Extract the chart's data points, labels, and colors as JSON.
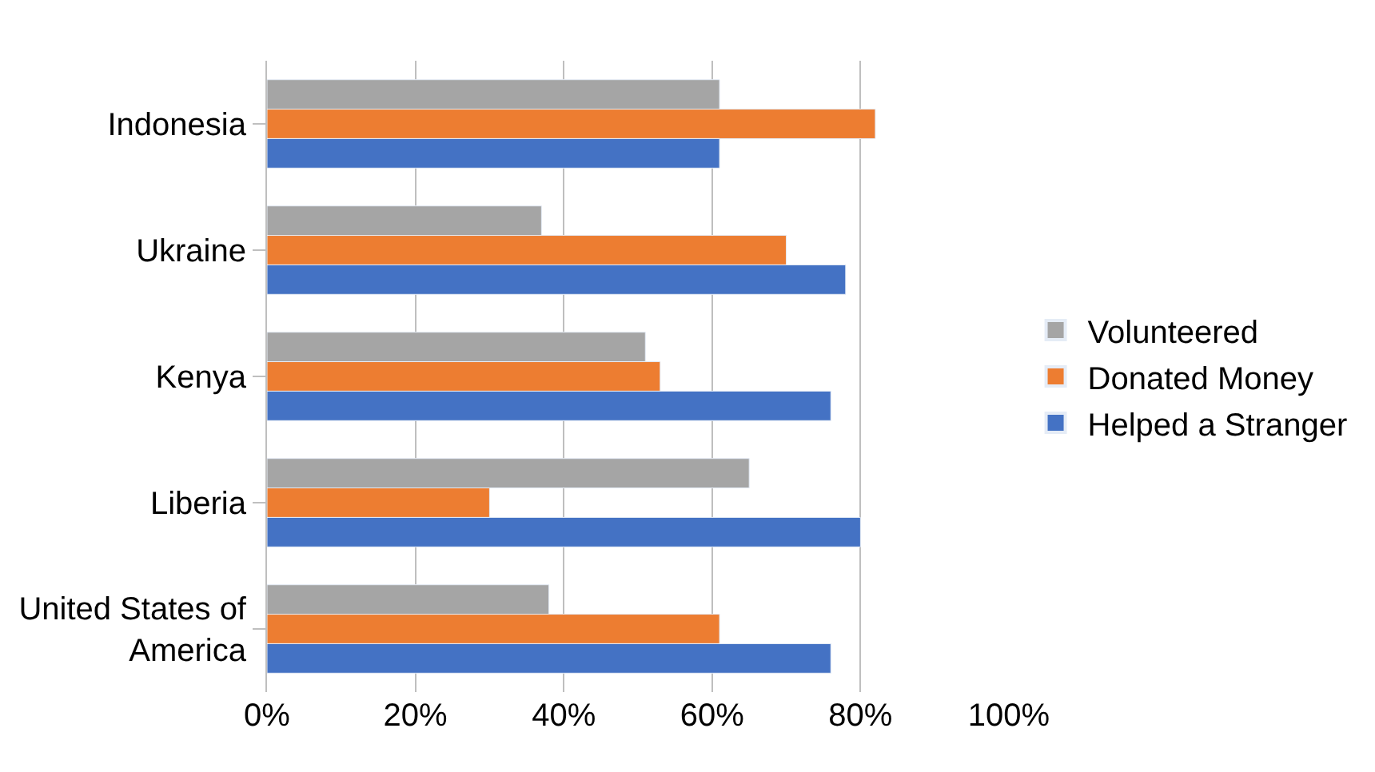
{
  "chart_data": {
    "type": "bar",
    "orientation": "horizontal",
    "categories": [
      "Indonesia",
      "Ukraine",
      "Kenya",
      "Liberia",
      "United States of America"
    ],
    "series": [
      {
        "name": "Volunteered",
        "color": "#a5a5a5",
        "values": [
          61,
          37,
          51,
          65,
          38
        ]
      },
      {
        "name": "Donated Money",
        "color": "#ed7d31",
        "values": [
          82,
          70,
          53,
          30,
          61
        ]
      },
      {
        "name": "Helped a Stranger",
        "color": "#4472c4",
        "values": [
          61,
          78,
          76,
          80,
          76
        ]
      }
    ],
    "xlim": [
      0,
      100
    ],
    "xticks": [
      {
        "value": 0,
        "label": "0%"
      },
      {
        "value": 20,
        "label": "20%"
      },
      {
        "value": 40,
        "label": "40%"
      },
      {
        "value": 60,
        "label": "60%"
      },
      {
        "value": 80,
        "label": "80%"
      },
      {
        "value": 100,
        "label": "100%"
      }
    ],
    "grid": "x",
    "legend": "right"
  }
}
